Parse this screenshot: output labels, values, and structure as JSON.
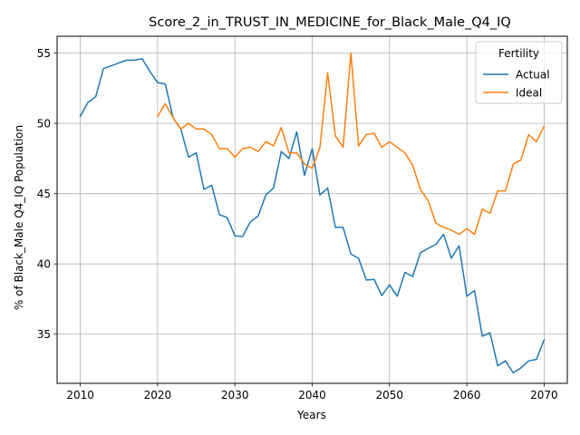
{
  "chart_data": {
    "type": "line",
    "title": "Score_2_in_TRUST_IN_MEDICINE_for_Black_Male_Q4_IQ",
    "xlabel": "Years",
    "ylabel": "% of Black_Male Q4_IQ Population",
    "xlim": [
      2007,
      2073
    ],
    "ylim": [
      31.5,
      56.2
    ],
    "xticks": [
      2010,
      2020,
      2030,
      2040,
      2050,
      2060,
      2070
    ],
    "yticks": [
      35,
      40,
      45,
      50,
      55
    ],
    "grid": true,
    "legend": {
      "title": "Fertility",
      "placement": "top-right"
    },
    "colors": {
      "Actual": "#1f77b4",
      "Ideal": "#ff7f0e"
    },
    "series": [
      {
        "name": "Actual",
        "x": [
          2010,
          2011,
          2012,
          2013,
          2014,
          2015,
          2016,
          2017,
          2018,
          2019,
          2020,
          2021,
          2022,
          2023,
          2024,
          2025,
          2026,
          2027,
          2028,
          2029,
          2030,
          2031,
          2032,
          2033,
          2034,
          2035,
          2036,
          2037,
          2038,
          2039,
          2040,
          2041,
          2042,
          2043,
          2044,
          2045,
          2046,
          2047,
          2048,
          2049,
          2050,
          2051,
          2052,
          2053,
          2054,
          2055,
          2056,
          2057,
          2058,
          2059,
          2060,
          2061,
          2062,
          2063,
          2064,
          2065,
          2066,
          2067,
          2068,
          2069,
          2070
        ],
        "values": [
          50.5,
          51.5,
          51.9,
          53.9,
          54.1,
          54.3,
          54.5,
          54.5,
          54.6,
          53.7,
          52.9,
          52.8,
          50.4,
          49.6,
          47.6,
          47.9,
          45.3,
          45.6,
          43.5,
          43.3,
          42.0,
          41.95,
          43.0,
          43.4,
          44.9,
          45.4,
          48.0,
          47.5,
          49.4,
          46.3,
          48.2,
          44.9,
          45.4,
          42.6,
          42.6,
          40.7,
          40.4,
          38.85,
          38.9,
          37.75,
          38.5,
          37.7,
          39.4,
          39.1,
          40.8,
          41.1,
          41.4,
          42.1,
          40.4,
          41.3,
          37.7,
          38.1,
          34.85,
          35.1,
          32.75,
          33.1,
          32.25,
          32.6,
          33.1,
          33.2,
          34.6
        ]
      },
      {
        "name": "Ideal",
        "x": [
          2020,
          2021,
          2022,
          2023,
          2024,
          2025,
          2026,
          2027,
          2028,
          2029,
          2030,
          2031,
          2032,
          2033,
          2034,
          2035,
          2036,
          2037,
          2038,
          2039,
          2040,
          2041,
          2042,
          2043,
          2044,
          2045,
          2046,
          2047,
          2048,
          2049,
          2050,
          2051,
          2052,
          2053,
          2054,
          2055,
          2056,
          2057,
          2058,
          2059,
          2060,
          2061,
          2062,
          2063,
          2064,
          2065,
          2066,
          2067,
          2068,
          2069,
          2070
        ],
        "values": [
          50.5,
          51.4,
          50.4,
          49.6,
          50.0,
          49.6,
          49.6,
          49.2,
          48.2,
          48.2,
          47.6,
          48.2,
          48.3,
          48.0,
          48.7,
          48.4,
          49.7,
          47.9,
          47.9,
          47.1,
          46.8,
          48.3,
          53.6,
          49.1,
          48.3,
          55.0,
          48.4,
          49.2,
          49.3,
          48.3,
          48.7,
          48.3,
          47.9,
          47.0,
          45.3,
          44.5,
          42.9,
          42.6,
          42.4,
          42.1,
          42.5,
          42.1,
          43.9,
          43.6,
          45.2,
          45.2,
          47.1,
          47.4,
          49.2,
          48.7,
          49.8
        ]
      }
    ]
  }
}
